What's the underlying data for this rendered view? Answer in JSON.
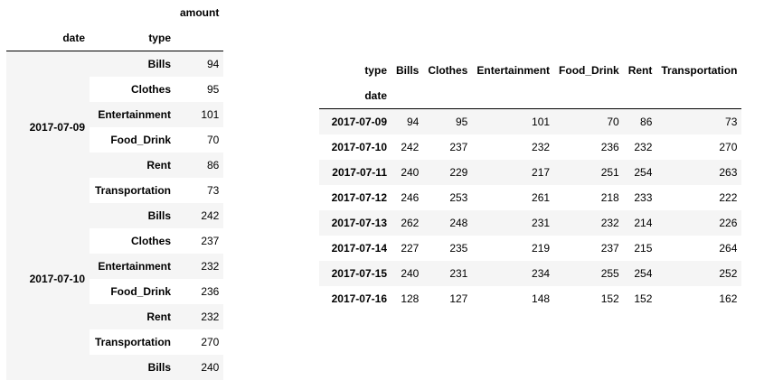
{
  "left_table": {
    "header": {
      "value_label": "amount",
      "index_names": [
        "date",
        "type"
      ]
    },
    "groups": [
      {
        "date": "2017-07-09",
        "rows": [
          {
            "type": "Bills",
            "amount": "94"
          },
          {
            "type": "Clothes",
            "amount": "95"
          },
          {
            "type": "Entertainment",
            "amount": "101"
          },
          {
            "type": "Food_Drink",
            "amount": "70"
          },
          {
            "type": "Rent",
            "amount": "86"
          },
          {
            "type": "Transportation",
            "amount": "73"
          }
        ]
      },
      {
        "date": "2017-07-10",
        "rows": [
          {
            "type": "Bills",
            "amount": "242"
          },
          {
            "type": "Clothes",
            "amount": "237"
          },
          {
            "type": "Entertainment",
            "amount": "232"
          },
          {
            "type": "Food_Drink",
            "amount": "236"
          },
          {
            "type": "Rent",
            "amount": "232"
          },
          {
            "type": "Transportation",
            "amount": "270"
          }
        ]
      },
      {
        "date": "",
        "rows": [
          {
            "type": "Bills",
            "amount": "240"
          }
        ]
      }
    ]
  },
  "right_table": {
    "columns_name": "type",
    "index_name": "date",
    "columns": [
      "Bills",
      "Clothes",
      "Entertainment",
      "Food_Drink",
      "Rent",
      "Transportation"
    ],
    "rows": [
      {
        "date": "2017-07-09",
        "values": [
          "94",
          "95",
          "101",
          "70",
          "86",
          "73"
        ]
      },
      {
        "date": "2017-07-10",
        "values": [
          "242",
          "237",
          "232",
          "236",
          "232",
          "270"
        ]
      },
      {
        "date": "2017-07-11",
        "values": [
          "240",
          "229",
          "217",
          "251",
          "254",
          "263"
        ]
      },
      {
        "date": "2017-07-12",
        "values": [
          "246",
          "253",
          "261",
          "218",
          "233",
          "222"
        ]
      },
      {
        "date": "2017-07-13",
        "values": [
          "262",
          "248",
          "231",
          "232",
          "214",
          "226"
        ]
      },
      {
        "date": "2017-07-14",
        "values": [
          "227",
          "235",
          "219",
          "237",
          "215",
          "264"
        ]
      },
      {
        "date": "2017-07-15",
        "values": [
          "240",
          "231",
          "234",
          "255",
          "254",
          "252"
        ]
      },
      {
        "date": "2017-07-16",
        "values": [
          "128",
          "127",
          "148",
          "152",
          "152",
          "162"
        ]
      }
    ]
  }
}
